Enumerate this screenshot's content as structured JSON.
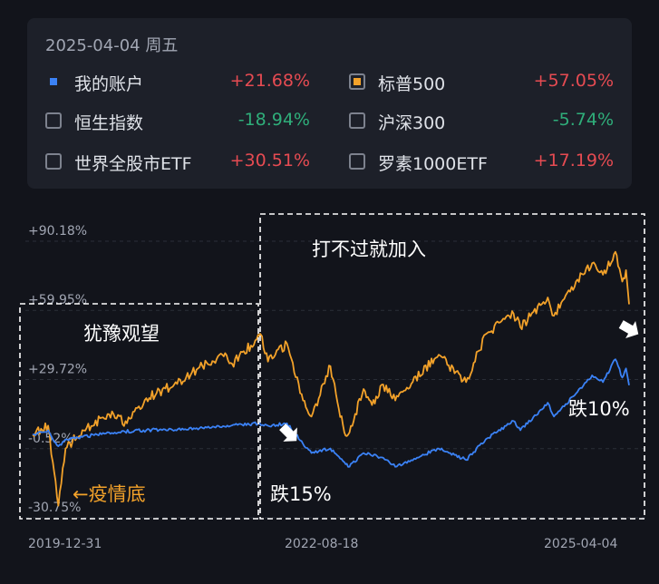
{
  "header": {
    "date": "2025-04-04 周五"
  },
  "legend": [
    {
      "name": "我的账户",
      "value": "+21.68%",
      "sign": "pos",
      "marker": "dot",
      "color": "#3b82f6"
    },
    {
      "name": "标普500",
      "value": "+57.05%",
      "sign": "pos",
      "marker": "checked",
      "color": "#f3a22a"
    },
    {
      "name": "恒生指数",
      "value": "-18.94%",
      "sign": "neg",
      "marker": "unchecked"
    },
    {
      "name": "沪深300",
      "value": "-5.74%",
      "sign": "neg",
      "marker": "unchecked"
    },
    {
      "name": "世界全股市ETF",
      "value": "+30.51%",
      "sign": "pos",
      "marker": "unchecked"
    },
    {
      "name": "罗素1000ETF",
      "value": "+17.19%",
      "sign": "pos",
      "marker": "unchecked"
    }
  ],
  "chart_data": {
    "type": "line",
    "y_ticks": [
      "+90.18%",
      "+59.95%",
      "+29.72%",
      "-0.52%",
      "-30.75%"
    ],
    "y_tick_values": [
      90.18,
      59.95,
      29.72,
      -0.52,
      -30.75
    ],
    "x_ticks": [
      "2019-12-31",
      "2022-08-18",
      "2025-04-04"
    ],
    "x_range": [
      "2019-12-31",
      "2025-04-04"
    ],
    "grid": true,
    "series": [
      {
        "name": "标普500",
        "color": "#f3a22a",
        "points": [
          [
            "2019-12-31",
            0
          ],
          [
            "2020-02-19",
            4
          ],
          [
            "2020-03-05",
            -12
          ],
          [
            "2020-03-23",
            -31
          ],
          [
            "2020-04-15",
            -6
          ],
          [
            "2020-06-08",
            2
          ],
          [
            "2020-09-02",
            9
          ],
          [
            "2020-10-30",
            5
          ],
          [
            "2020-12-31",
            16
          ],
          [
            "2021-03-31",
            22
          ],
          [
            "2021-06-30",
            30
          ],
          [
            "2021-09-02",
            35
          ],
          [
            "2021-10-04",
            31
          ],
          [
            "2021-12-31",
            43
          ],
          [
            "2022-01-03",
            44
          ],
          [
            "2022-01-27",
            32
          ],
          [
            "2022-03-29",
            40
          ],
          [
            "2022-05-20",
            15
          ],
          [
            "2022-06-16",
            8
          ],
          [
            "2022-08-16",
            30
          ],
          [
            "2022-09-30",
            1
          ],
          [
            "2022-10-12",
            0
          ],
          [
            "2022-12-01",
            20
          ],
          [
            "2022-12-28",
            13
          ],
          [
            "2023-02-02",
            22
          ],
          [
            "2023-03-13",
            15
          ],
          [
            "2023-07-31",
            35
          ],
          [
            "2023-10-27",
            23
          ],
          [
            "2023-12-29",
            44
          ],
          [
            "2024-03-28",
            53
          ],
          [
            "2024-04-19",
            47
          ],
          [
            "2024-07-16",
            60
          ],
          [
            "2024-08-05",
            52
          ],
          [
            "2024-10-15",
            67
          ],
          [
            "2024-12-06",
            75
          ],
          [
            "2025-01-10",
            70
          ],
          [
            "2025-02-19",
            80
          ],
          [
            "2025-03-13",
            67
          ],
          [
            "2025-03-25",
            72
          ],
          [
            "2025-04-04",
            57.05
          ]
        ]
      },
      {
        "name": "我的账户",
        "color": "#3b82f6",
        "points": [
          [
            "2019-12-31",
            0
          ],
          [
            "2020-02-19",
            2
          ],
          [
            "2020-03-05",
            -2
          ],
          [
            "2020-03-23",
            -5
          ],
          [
            "2020-04-15",
            -2
          ],
          [
            "2020-06-08",
            -1
          ],
          [
            "2020-09-02",
            1
          ],
          [
            "2020-12-31",
            2
          ],
          [
            "2021-06-30",
            3
          ],
          [
            "2021-12-31",
            5
          ],
          [
            "2022-01-27",
            4
          ],
          [
            "2022-03-29",
            5
          ],
          [
            "2022-05-20",
            -4
          ],
          [
            "2022-06-16",
            -8
          ],
          [
            "2022-08-16",
            -6
          ],
          [
            "2022-09-30",
            -12
          ],
          [
            "2022-10-12",
            -14
          ],
          [
            "2022-12-01",
            -8
          ],
          [
            "2023-02-02",
            -10
          ],
          [
            "2023-03-13",
            -14
          ],
          [
            "2023-07-31",
            -6
          ],
          [
            "2023-10-27",
            -11
          ],
          [
            "2023-12-29",
            -2
          ],
          [
            "2024-03-28",
            6
          ],
          [
            "2024-04-19",
            2
          ],
          [
            "2024-07-16",
            14
          ],
          [
            "2024-08-05",
            8
          ],
          [
            "2024-10-15",
            18
          ],
          [
            "2024-12-06",
            26
          ],
          [
            "2025-01-10",
            23
          ],
          [
            "2025-02-19",
            33
          ],
          [
            "2025-03-13",
            25
          ],
          [
            "2025-03-25",
            29
          ],
          [
            "2025-04-04",
            21.68
          ]
        ]
      }
    ],
    "annotations": [
      {
        "text": "犹豫观望",
        "color": "#ffffff"
      },
      {
        "text": "打不过就加入",
        "color": "#ffffff"
      },
      {
        "text": "←疫情底",
        "color": "#f3a22a"
      },
      {
        "text": "跌15%",
        "color": "#ffffff"
      },
      {
        "text": "跌10%",
        "color": "#ffffff"
      }
    ]
  }
}
